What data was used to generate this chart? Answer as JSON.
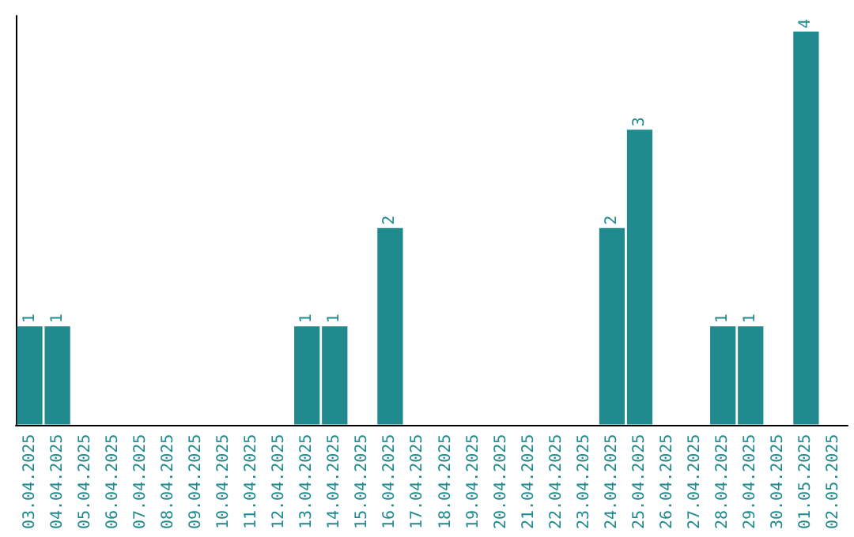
{
  "chart_data": {
    "type": "bar",
    "categories": [
      "03.04.2025",
      "04.04.2025",
      "05.04.2025",
      "06.04.2025",
      "07.04.2025",
      "08.04.2025",
      "09.04.2025",
      "10.04.2025",
      "11.04.2025",
      "12.04.2025",
      "13.04.2025",
      "14.04.2025",
      "15.04.2025",
      "16.04.2025",
      "17.04.2025",
      "18.04.2025",
      "19.04.2025",
      "20.04.2025",
      "21.04.2025",
      "22.04.2025",
      "23.04.2025",
      "24.04.2025",
      "25.04.2025",
      "26.04.2025",
      "27.04.2025",
      "28.04.2025",
      "29.04.2025",
      "30.04.2025",
      "01.05.2025",
      "02.05.2025"
    ],
    "values": [
      1,
      1,
      0,
      0,
      0,
      0,
      0,
      0,
      0,
      0,
      1,
      1,
      0,
      2,
      0,
      0,
      0,
      0,
      0,
      0,
      0,
      2,
      3,
      0,
      0,
      1,
      1,
      0,
      4,
      0
    ],
    "value_labels": [
      "1",
      "1",
      null,
      null,
      null,
      null,
      null,
      null,
      null,
      null,
      "1",
      "1",
      null,
      "2",
      null,
      null,
      null,
      null,
      null,
      null,
      null,
      "2",
      "3",
      null,
      null,
      "1",
      "1",
      null,
      "4",
      null
    ],
    "color": "#218a8e",
    "tick_labels": "x"
  }
}
